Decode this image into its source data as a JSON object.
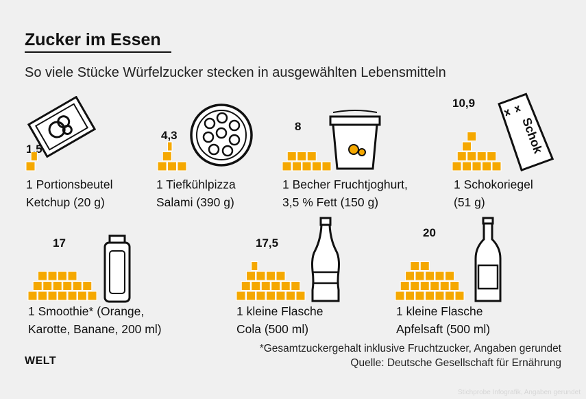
{
  "title": "Zucker im Essen",
  "subtitle": "So viele Stücke Würfelzucker stecken in ausgewählten Lebensmitteln",
  "footnote": "*Gesamtzuckergehalt inklusive Fruchtzucker, Angaben gerundet",
  "source": "Quelle: Deutsche Gesellschaft für Ernährung",
  "logo": "WELT",
  "watermark": "Stichprobe Infografik, Angaben gerundet",
  "colors": {
    "cube": "#f5a800",
    "cube_edge": "#ffffff",
    "text": "#111111",
    "background": "#f0f0f0"
  },
  "chart_data": {
    "type": "bar",
    "unit": "Stücke Würfelzucker",
    "categories": [
      "1 Portionsbeutel Ketchup (20 g)",
      "1 Tiefkühlpizza Salami (390 g)",
      "1 Becher Fruchtjoghurt, 3,5 % Fett (150 g)",
      "1 Schokoriegel (51 g)",
      "1 Smoothie* (Orange, Karotte, Banane, 200 ml)",
      "1 kleine Flasche Cola (500 ml)",
      "1 kleine Flasche Apfelsaft (500 ml)"
    ],
    "values": [
      1.5,
      4.3,
      8,
      10.9,
      17,
      17.5,
      20
    ],
    "items": [
      {
        "value_label": "1,5",
        "line1": "1 Portionsbeutel",
        "line2": "Ketchup (20 g)",
        "icon": "ketchup-sachet-icon"
      },
      {
        "value_label": "4,3",
        "line1": "1 Tiefkühlpizza",
        "line2": "Salami (390 g)",
        "icon": "pizza-icon"
      },
      {
        "value_label": "8",
        "line1": "1 Becher Fruchtjoghurt,",
        "line2": "3,5 % Fett (150 g)",
        "icon": "yogurt-cup-icon"
      },
      {
        "value_label": "10,9",
        "line1": "1 Schokoriegel",
        "line2": "(51 g)",
        "icon": "chocolate-bar-icon"
      },
      {
        "value_label": "17",
        "line1": "1 Smoothie* (Orange,",
        "line2": "Karotte, Banane, 200 ml)",
        "icon": "smoothie-bottle-icon"
      },
      {
        "value_label": "17,5",
        "line1": "1 kleine Flasche",
        "line2": "Cola (500 ml)",
        "icon": "cola-bottle-icon"
      },
      {
        "value_label": "20",
        "line1": "1 kleine Flasche",
        "line2": "Apfelsaft (500 ml)",
        "icon": "juice-bottle-icon"
      }
    ]
  }
}
